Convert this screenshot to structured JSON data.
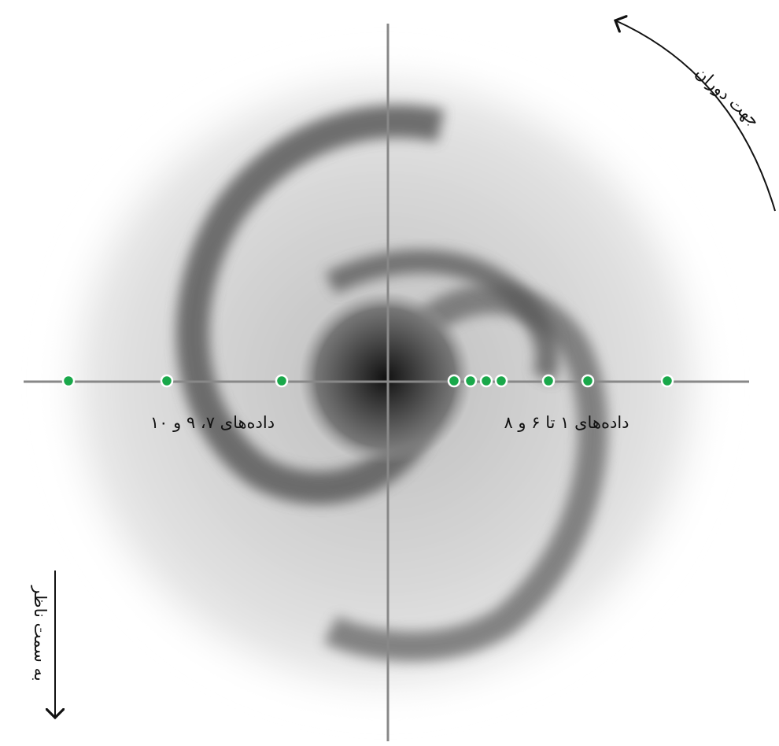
{
  "labels": {
    "rotation": "جهت دوران",
    "right_points": "داده‌های ۱ تا ۶ و ۸",
    "left_points": "داده‌های ۷، ۹ و ۱۰",
    "observer": "به سمت ناظر"
  }
}
